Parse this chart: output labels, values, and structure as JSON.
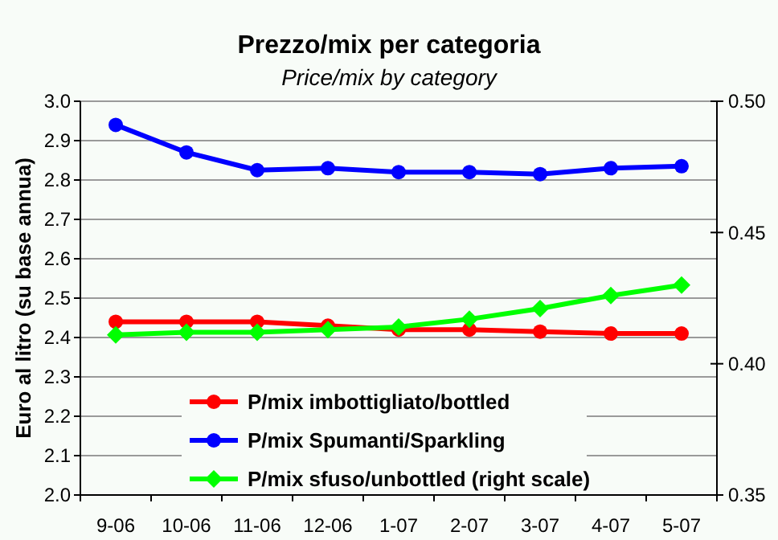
{
  "chart_data": {
    "type": "line",
    "title": "Prezzo/mix per categoria",
    "subtitle": "Price/mix by category",
    "ylabel": "Euro al litro (su base annua)",
    "categories": [
      "9-06",
      "10-06",
      "11-06",
      "12-06",
      "1-07",
      "2-07",
      "3-07",
      "4-07",
      "5-07"
    ],
    "series": [
      {
        "name": "P/mix imbottigliato/bottled",
        "color": "#ff0000",
        "marker": "circle",
        "values": [
          2.44,
          2.44,
          2.44,
          2.43,
          2.42,
          2.42,
          2.415,
          2.41,
          2.41
        ]
      },
      {
        "name": "P/mix Spumanti/Sparkling",
        "color": "#0000ff",
        "marker": "circle",
        "values": [
          2.94,
          2.87,
          2.825,
          2.83,
          2.82,
          2.82,
          2.815,
          2.83,
          2.835
        ]
      },
      {
        "name": "P/mix sfuso/unbottled (right scale)",
        "color": "#00ff00",
        "marker": "diamond",
        "axis": "y2",
        "values": [
          0.411,
          0.412,
          0.412,
          0.413,
          0.414,
          0.417,
          0.421,
          0.426,
          0.43
        ]
      }
    ],
    "ylim": [
      2.0,
      3.0
    ],
    "yticks": [
      {
        "value": 2.0,
        "label": "2.0"
      },
      {
        "value": 2.1,
        "label": "2.1"
      },
      {
        "value": 2.2,
        "label": "2.2"
      },
      {
        "value": 2.3,
        "label": "2.3"
      },
      {
        "value": 2.4,
        "label": "2.4"
      },
      {
        "value": 2.5,
        "label": "2.5"
      },
      {
        "value": 2.6,
        "label": "2.6"
      },
      {
        "value": 2.7,
        "label": "2.7"
      },
      {
        "value": 2.8,
        "label": "2.8"
      },
      {
        "value": 2.9,
        "label": "2.9"
      },
      {
        "value": 3.0,
        "label": "3.0"
      }
    ],
    "y2lim": [
      0.35,
      0.5
    ],
    "y2ticks": [
      {
        "value": 0.35,
        "label": "0.35"
      },
      {
        "value": 0.4,
        "label": "0.40"
      },
      {
        "value": 0.45,
        "label": "0.45"
      },
      {
        "value": 0.5,
        "label": "0.50"
      }
    ],
    "grid": "y",
    "legend": "bottom",
    "line_style": "solid"
  }
}
